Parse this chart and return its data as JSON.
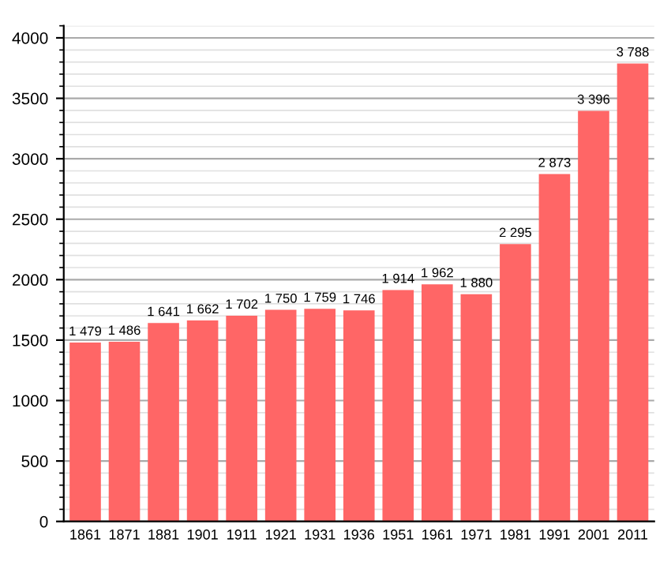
{
  "chart_data": {
    "type": "bar",
    "categories": [
      "1861",
      "1871",
      "1881",
      "1901",
      "1911",
      "1921",
      "1931",
      "1936",
      "1951",
      "1961",
      "1971",
      "1981",
      "1991",
      "2001",
      "2011"
    ],
    "values": [
      1479,
      1486,
      1641,
      1662,
      1702,
      1750,
      1759,
      1746,
      1914,
      1962,
      1880,
      2295,
      2873,
      3396,
      3788
    ],
    "value_labels": [
      "1 479",
      "1 486",
      "1 641",
      "1 662",
      "1 702",
      "1 750",
      "1 759",
      "1 746",
      "1 914",
      "1 962",
      "1 880",
      "2 295",
      "2 873",
      "3 396",
      "3 788"
    ],
    "color": "#ff6666",
    "ylim": [
      0,
      4100
    ],
    "yticks": [
      0,
      500,
      1000,
      1500,
      2000,
      2500,
      3000,
      3500,
      4000
    ],
    "grid": "y"
  }
}
